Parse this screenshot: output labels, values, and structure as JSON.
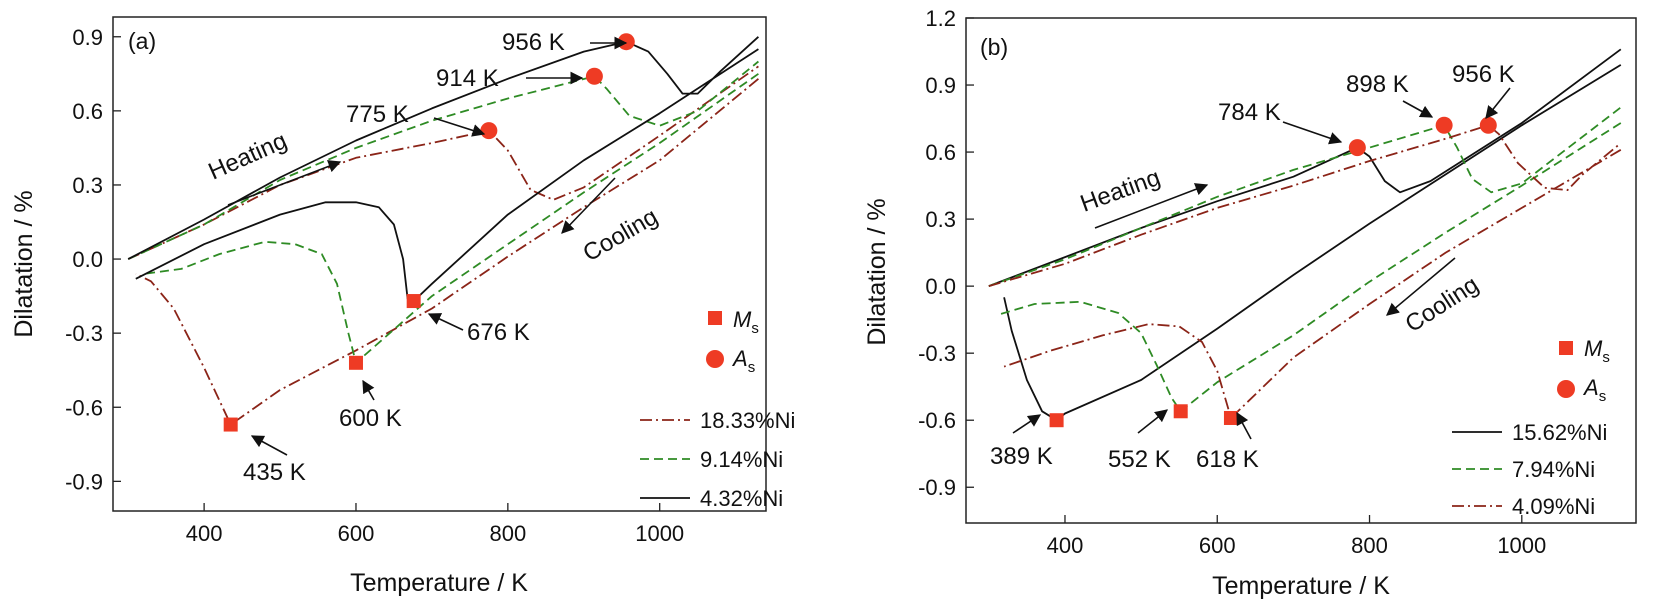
{
  "chart_data": [
    {
      "type": "line",
      "panel_label": "(a)",
      "xlabel": "Temperature / K",
      "ylabel": "Dilatation / %",
      "xlim": [
        280,
        1140
      ],
      "ylim": [
        -1.02,
        0.98
      ],
      "xticks": [
        400,
        600,
        800,
        1000
      ],
      "yticks": [
        -0.9,
        -0.6,
        -0.3,
        0.0,
        0.3,
        0.6,
        0.9
      ],
      "ytick_labels": [
        "-0.9",
        "-0.6",
        "-0.3",
        "0.0",
        "0.3",
        "0.6",
        "0.9"
      ],
      "series": [
        {
          "name": "18.33%Ni",
          "color": "#8b2418",
          "dash": "dashdot",
          "points": [
            [
              300,
              0
            ],
            [
              400,
              0.14
            ],
            [
              500,
              0.3
            ],
            [
              600,
              0.41
            ],
            [
              700,
              0.47
            ],
            [
              775,
              0.52
            ],
            [
              800,
              0.44
            ],
            [
              830,
              0.28
            ],
            [
              860,
              0.24
            ],
            [
              900,
              0.29
            ],
            [
              1000,
              0.5
            ],
            [
              1130,
              0.78
            ],
            null,
            [
              1130,
              0.73
            ],
            [
              1000,
              0.4
            ],
            [
              900,
              0.21
            ],
            [
              800,
              0.01
            ],
            [
              700,
              -0.2
            ],
            [
              600,
              -0.37
            ],
            [
              500,
              -0.53
            ],
            [
              435,
              -0.67
            ],
            [
              400,
              -0.44
            ],
            [
              360,
              -0.2
            ],
            [
              330,
              -0.09
            ],
            [
              310,
              -0.06
            ]
          ]
        },
        {
          "name": "9.14%Ni",
          "color": "#2e8b24",
          "dash": "dashed",
          "points": [
            [
              300,
              0
            ],
            [
              400,
              0.14
            ],
            [
              500,
              0.32
            ],
            [
              600,
              0.45
            ],
            [
              700,
              0.56
            ],
            [
              800,
              0.65
            ],
            [
              914,
              0.74
            ],
            [
              930,
              0.69
            ],
            [
              960,
              0.58
            ],
            [
              1000,
              0.54
            ],
            [
              1050,
              0.6
            ],
            [
              1130,
              0.8
            ],
            null,
            [
              1130,
              0.75
            ],
            [
              1000,
              0.47
            ],
            [
              900,
              0.27
            ],
            [
              800,
              0.06
            ],
            [
              700,
              -0.15
            ],
            [
              600,
              -0.42
            ],
            [
              590,
              -0.3
            ],
            [
              575,
              -0.1
            ],
            [
              555,
              0.02
            ],
            [
              520,
              0.06
            ],
            [
              480,
              0.07
            ],
            [
              420,
              0.02
            ],
            [
              370,
              -0.04
            ],
            [
              320,
              -0.06
            ]
          ]
        },
        {
          "name": "4.32%Ni",
          "color": "#111111",
          "dash": "solid",
          "points": [
            [
              300,
              0
            ],
            [
              400,
              0.16
            ],
            [
              500,
              0.33
            ],
            [
              600,
              0.48
            ],
            [
              700,
              0.61
            ],
            [
              800,
              0.73
            ],
            [
              900,
              0.84
            ],
            [
              956,
              0.88
            ],
            [
              985,
              0.84
            ],
            [
              1010,
              0.75
            ],
            [
              1030,
              0.67
            ],
            [
              1050,
              0.67
            ],
            [
              1080,
              0.76
            ],
            [
              1130,
              0.9
            ],
            null,
            [
              1130,
              0.85
            ],
            [
              1000,
              0.59
            ],
            [
              900,
              0.4
            ],
            [
              800,
              0.18
            ],
            [
              700,
              -0.1
            ],
            [
              676,
              -0.17
            ],
            [
              668,
              -0.16
            ],
            [
              662,
              0.0
            ],
            [
              650,
              0.14
            ],
            [
              630,
              0.21
            ],
            [
              600,
              0.23
            ],
            [
              560,
              0.23
            ],
            [
              500,
              0.18
            ],
            [
              400,
              0.06
            ],
            [
              310,
              -0.08
            ]
          ]
        }
      ],
      "markers": [
        {
          "kind": "Ms",
          "x": 435,
          "y": -0.67,
          "label": "435 K"
        },
        {
          "kind": "Ms",
          "x": 600,
          "y": -0.42,
          "label": "600 K"
        },
        {
          "kind": "Ms",
          "x": 676,
          "y": -0.17,
          "label": "676 K"
        },
        {
          "kind": "As",
          "x": 775,
          "y": 0.52,
          "label": "775 K"
        },
        {
          "kind": "As",
          "x": 914,
          "y": 0.74,
          "label": "914 K"
        },
        {
          "kind": "As",
          "x": 956,
          "y": 0.88,
          "label": "956 K"
        }
      ],
      "heating_label": "Heating",
      "cooling_label": "Cooling",
      "legend": {
        "placement": "bottom-right",
        "Ms_symbol": "M",
        "As_symbol": "A",
        "subscript": "s",
        "series_order": [
          "18.33%Ni",
          "9.14%Ni",
          "4.32%Ni"
        ]
      }
    },
    {
      "type": "line",
      "panel_label": "(b)",
      "xlabel": "Temperature / K",
      "ylabel": "Dilatation / %",
      "xlim": [
        270,
        1150
      ],
      "ylim": [
        -1.06,
        1.2
      ],
      "xticks": [
        400,
        600,
        800,
        1000
      ],
      "yticks": [
        -0.9,
        -0.6,
        -0.3,
        0.0,
        0.3,
        0.6,
        0.9,
        1.2
      ],
      "ytick_labels": [
        "-0.9",
        "-0.6",
        "-0.3",
        "0.0",
        "0.3",
        "0.6",
        "0.9",
        "1.2"
      ],
      "series": [
        {
          "name": "15.62%Ni",
          "color": "#111111",
          "dash": "solid",
          "points": [
            [
              300,
              0
            ],
            [
              400,
              0.13
            ],
            [
              500,
              0.26
            ],
            [
              600,
              0.38
            ],
            [
              700,
              0.49
            ],
            [
              784,
              0.62
            ],
            [
              800,
              0.58
            ],
            [
              820,
              0.47
            ],
            [
              840,
              0.42
            ],
            [
              880,
              0.47
            ],
            [
              1000,
              0.73
            ],
            [
              1130,
              1.06
            ],
            null,
            [
              1130,
              0.99
            ],
            [
              1000,
              0.72
            ],
            [
              900,
              0.5
            ],
            [
              800,
              0.28
            ],
            [
              700,
              0.05
            ],
            [
              600,
              -0.19
            ],
            [
              500,
              -0.42
            ],
            [
              400,
              -0.57
            ],
            [
              389,
              -0.6
            ],
            [
              370,
              -0.56
            ],
            [
              350,
              -0.42
            ],
            [
              330,
              -0.2
            ],
            [
              320,
              -0.05
            ]
          ]
        },
        {
          "name": "7.94%Ni",
          "color": "#2e8b24",
          "dash": "dashed",
          "points": [
            [
              300,
              0
            ],
            [
              400,
              0.12
            ],
            [
              500,
              0.26
            ],
            [
              600,
              0.4
            ],
            [
              700,
              0.52
            ],
            [
              800,
              0.62
            ],
            [
              898,
              0.72
            ],
            [
              915,
              0.62
            ],
            [
              935,
              0.48
            ],
            [
              960,
              0.42
            ],
            [
              1000,
              0.46
            ],
            [
              1130,
              0.8
            ],
            null,
            [
              1130,
              0.73
            ],
            [
              1000,
              0.45
            ],
            [
              900,
              0.24
            ],
            [
              800,
              0.02
            ],
            [
              700,
              -0.22
            ],
            [
              600,
              -0.43
            ],
            [
              552,
              -0.56
            ],
            [
              540,
              -0.5
            ],
            [
              520,
              -0.35
            ],
            [
              500,
              -0.21
            ],
            [
              470,
              -0.12
            ],
            [
              420,
              -0.07
            ],
            [
              360,
              -0.08
            ],
            [
              310,
              -0.13
            ]
          ]
        },
        {
          "name": "4.09%Ni",
          "color": "#8b2418",
          "dash": "dashdot",
          "points": [
            [
              300,
              0
            ],
            [
              400,
              0.1
            ],
            [
              500,
              0.23
            ],
            [
              600,
              0.35
            ],
            [
              700,
              0.45
            ],
            [
              800,
              0.56
            ],
            [
              900,
              0.66
            ],
            [
              956,
              0.72
            ],
            [
              970,
              0.68
            ],
            [
              995,
              0.55
            ],
            [
              1030,
              0.44
            ],
            [
              1060,
              0.43
            ],
            [
              1080,
              0.5
            ],
            [
              1130,
              0.64
            ],
            null,
            [
              1130,
              0.61
            ],
            [
              1000,
              0.35
            ],
            [
              900,
              0.15
            ],
            [
              800,
              -0.08
            ],
            [
              700,
              -0.32
            ],
            [
              618,
              -0.59
            ],
            [
              612,
              -0.52
            ],
            [
              600,
              -0.38
            ],
            [
              580,
              -0.25
            ],
            [
              550,
              -0.18
            ],
            [
              510,
              -0.17
            ],
            [
              450,
              -0.22
            ],
            [
              380,
              -0.29
            ],
            [
              320,
              -0.36
            ]
          ]
        }
      ],
      "markers": [
        {
          "kind": "Ms",
          "x": 389,
          "y": -0.6,
          "label": "389 K"
        },
        {
          "kind": "Ms",
          "x": 552,
          "y": -0.56,
          "label": "552 K"
        },
        {
          "kind": "Ms",
          "x": 618,
          "y": -0.59,
          "label": "618 K"
        },
        {
          "kind": "As",
          "x": 784,
          "y": 0.62,
          "label": "784 K"
        },
        {
          "kind": "As",
          "x": 898,
          "y": 0.72,
          "label": "898 K"
        },
        {
          "kind": "As",
          "x": 956,
          "y": 0.72,
          "label": "956 K"
        }
      ],
      "heating_label": "Heating",
      "cooling_label": "Cooling",
      "legend": {
        "placement": "bottom-right",
        "Ms_symbol": "M",
        "As_symbol": "A",
        "subscript": "s",
        "series_order": [
          "15.62%Ni",
          "7.94%Ni",
          "4.09%Ni"
        ]
      }
    }
  ],
  "colors": {
    "marker": "#ee3b24",
    "axis": "#222222"
  }
}
